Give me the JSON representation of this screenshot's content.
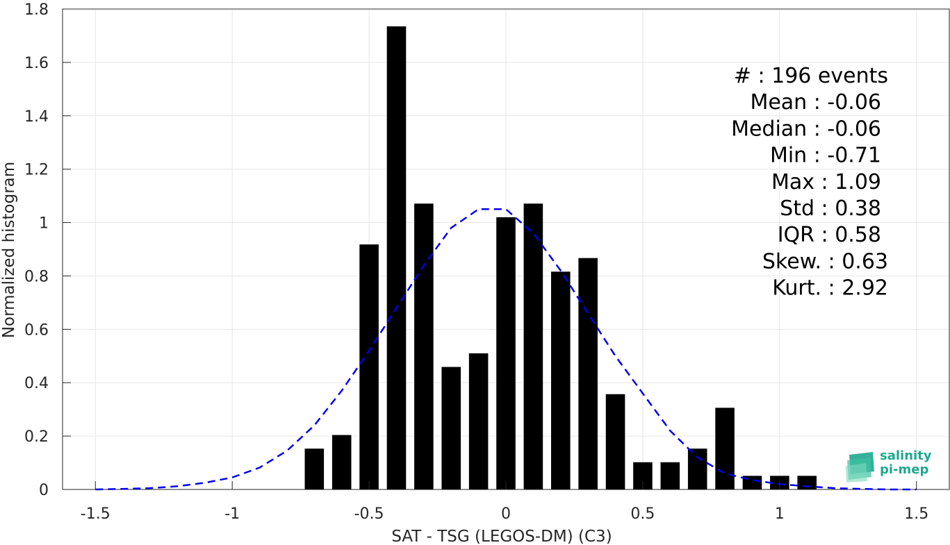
{
  "chart_data": {
    "type": "bar",
    "title": "",
    "xlabel": "SAT - TSG (LEGOS-DM) (C3)",
    "ylabel": "Normalized histogram",
    "xlim": [
      -1.62,
      1.62
    ],
    "ylim": [
      0,
      1.8
    ],
    "xticks": [
      -1.5,
      -1,
      -0.5,
      0,
      0.5,
      1,
      1.5
    ],
    "xtick_labels": [
      "-1.5",
      "-1",
      "-0.5",
      "0",
      "0.5",
      "1",
      "1.5"
    ],
    "yticks": [
      0,
      0.2,
      0.4,
      0.6,
      0.8,
      1,
      1.2,
      1.4,
      1.6,
      1.8
    ],
    "ytick_labels": [
      "0",
      "0.2",
      "0.4",
      "0.6",
      "0.8",
      "1",
      "1.2",
      "1.4",
      "1.6",
      "1.8"
    ],
    "grid": true,
    "bar_width": 0.07,
    "bars": {
      "x": [
        -0.7,
        -0.6,
        -0.5,
        -0.4,
        -0.3,
        -0.2,
        -0.1,
        0.0,
        0.1,
        0.2,
        0.3,
        0.4,
        0.5,
        0.6,
        0.7,
        0.8,
        0.9,
        1.0,
        1.1
      ],
      "values": [
        0.153,
        0.204,
        0.918,
        1.735,
        1.071,
        0.459,
        0.51,
        1.02,
        1.071,
        0.816,
        0.867,
        0.357,
        0.102,
        0.102,
        0.153,
        0.306,
        0.051,
        0.051,
        0.051
      ],
      "color": "#000000"
    },
    "fit_curve": {
      "style": "dashed",
      "color": "#0000ee",
      "x": [
        -1.5,
        -1.4,
        -1.3,
        -1.2,
        -1.1,
        -1.0,
        -0.9,
        -0.8,
        -0.7,
        -0.6,
        -0.5,
        -0.4,
        -0.3,
        -0.2,
        -0.1,
        0.0,
        0.1,
        0.2,
        0.3,
        0.4,
        0.5,
        0.6,
        0.7,
        0.8,
        0.9,
        1.0,
        1.1,
        1.2,
        1.3,
        1.4,
        1.5
      ],
      "y": [
        0.0,
        0.002,
        0.005,
        0.012,
        0.025,
        0.045,
        0.082,
        0.145,
        0.24,
        0.37,
        0.52,
        0.68,
        0.84,
        0.98,
        1.05,
        1.05,
        0.96,
        0.82,
        0.66,
        0.5,
        0.36,
        0.22,
        0.12,
        0.06,
        0.035,
        0.02,
        0.012,
        0.005,
        0.002,
        0.0,
        0.0
      ]
    },
    "stats": [
      {
        "label": "#  : 196 events"
      },
      {
        "label": "Mean : -0.06"
      },
      {
        "label": "Median : -0.06"
      },
      {
        "label": "Min : -0.71"
      },
      {
        "label": "Max : 1.09"
      },
      {
        "label": "Std : 0.38"
      },
      {
        "label": "IQR : 0.58"
      },
      {
        "label": "Skew. : 0.63"
      },
      {
        "label": "Kurt. : 2.92"
      }
    ]
  },
  "logo": {
    "line1": "salinity",
    "line2": "pi-mep",
    "color": "#1fa88f"
  }
}
